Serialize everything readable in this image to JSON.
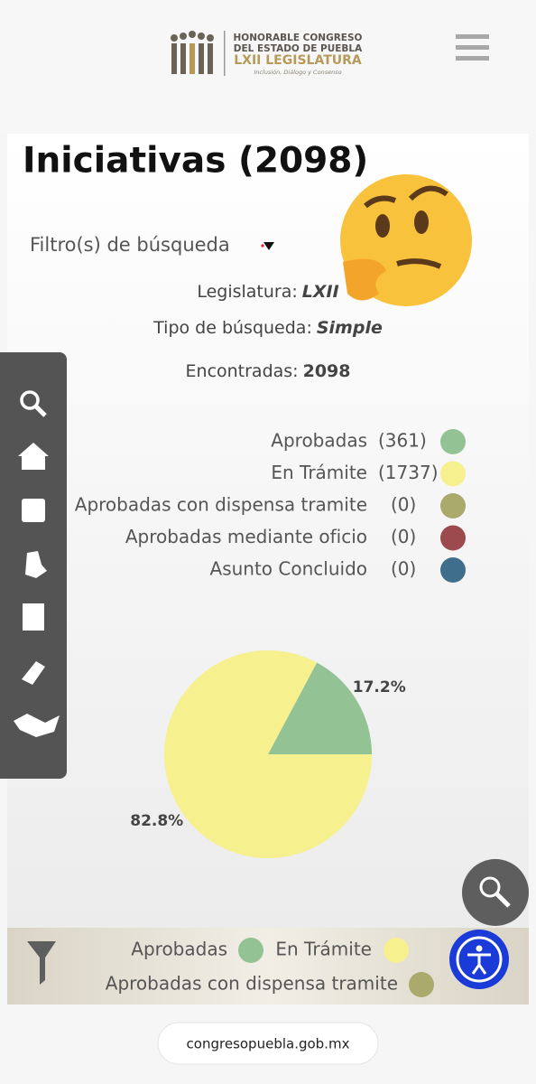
{
  "header": {
    "org_lines": [
      "HONORABLE CONGRESO",
      "DEL ESTADO DE PUEBLA"
    ],
    "legislature": "LXII LEGISLATURA",
    "motto": "Inclusión, Diálogo y Consenso"
  },
  "page": {
    "title": "Iniciativas (2098)",
    "filter_label": "Filtro(s) de búsqueda",
    "details": [
      {
        "label": "Legislatura:",
        "value": "LXII"
      },
      {
        "label": "Tipo de búsqueda:",
        "value": "Simple"
      },
      {
        "label": "Encontradas:",
        "value": "2098"
      }
    ]
  },
  "status_legend": [
    {
      "label": "Aprobadas",
      "count": "(361)",
      "color": "#93c295"
    },
    {
      "label": "En Trámite",
      "count": "(1737)",
      "color": "#f6f08e"
    },
    {
      "label": "Aprobadas con dispensa tramite",
      "count": "(0)",
      "color": "#a9aa6b"
    },
    {
      "label": "Aprobadas mediante oficio",
      "count": "(0)",
      "color": "#9c4a4d"
    },
    {
      "label": "Asunto Concluido",
      "count": "(0)",
      "color": "#3e6e8c"
    }
  ],
  "chart_data": {
    "type": "pie",
    "values": [
      17.2,
      82.8
    ],
    "value_labels": [
      "17.2%",
      "82.8%"
    ],
    "colors": [
      "#93c295",
      "#f6f08e"
    ]
  },
  "bottom_legend": [
    {
      "label": "Aprobadas",
      "color": "#93c295"
    },
    {
      "label": "En Trámite",
      "color": "#f6f08e"
    },
    {
      "label": "Aprobadas con dispensa tramite",
      "color": "#a9aa6b"
    }
  ],
  "browser": {
    "url": "congresopuebla.gob.mx"
  }
}
